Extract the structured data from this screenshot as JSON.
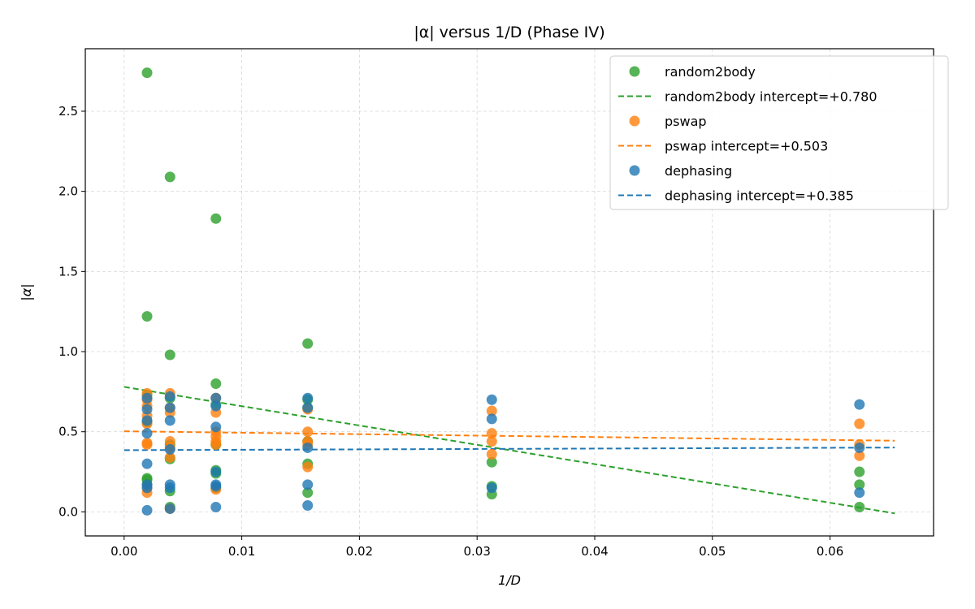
{
  "chart_data": {
    "type": "scatter",
    "title": "|α| versus 1/D (Phase IV)",
    "xlabel": "1/D",
    "ylabel": "|α|",
    "xlim": [
      -0.0033,
      0.0688
    ],
    "ylim": [
      -0.15,
      2.89
    ],
    "xticks": [
      0.0,
      0.01,
      0.02,
      0.03,
      0.04,
      0.05,
      0.06
    ],
    "xtick_labels": [
      "0.00",
      "0.01",
      "0.02",
      "0.03",
      "0.04",
      "0.05",
      "0.06"
    ],
    "yticks": [
      0.0,
      0.5,
      1.0,
      1.5,
      2.0,
      2.5
    ],
    "ytick_labels": [
      "0.0",
      "0.5",
      "1.0",
      "1.5",
      "2.0",
      "2.5"
    ],
    "grid": true,
    "legend_position": "top-right",
    "series": [
      {
        "name": "random2body",
        "fit_label": "random2body intercept=+0.780",
        "color": "#2ca02c",
        "fit": {
          "intercept": 0.78,
          "slope": -12.05,
          "x_range": [
            0.0,
            0.0655
          ]
        },
        "points": [
          [
            0.00195,
            2.74
          ],
          [
            0.00195,
            1.22
          ],
          [
            0.00195,
            0.73
          ],
          [
            0.00195,
            0.56
          ],
          [
            0.00195,
            0.21
          ],
          [
            0.00195,
            0.2
          ],
          [
            0.00195,
            0.17
          ],
          [
            0.0039,
            2.09
          ],
          [
            0.0039,
            0.98
          ],
          [
            0.0039,
            0.71
          ],
          [
            0.0039,
            0.42
          ],
          [
            0.0039,
            0.33
          ],
          [
            0.0039,
            0.13
          ],
          [
            0.0039,
            0.03
          ],
          [
            0.0078,
            1.83
          ],
          [
            0.0078,
            0.8
          ],
          [
            0.0078,
            0.67
          ],
          [
            0.0078,
            0.42
          ],
          [
            0.0078,
            0.26
          ],
          [
            0.0078,
            0.24
          ],
          [
            0.0078,
            0.15
          ],
          [
            0.0156,
            1.05
          ],
          [
            0.0156,
            0.7
          ],
          [
            0.0156,
            0.65
          ],
          [
            0.0156,
            0.44
          ],
          [
            0.0156,
            0.3
          ],
          [
            0.0156,
            0.12
          ],
          [
            0.03125,
            0.31
          ],
          [
            0.03125,
            0.16
          ],
          [
            0.03125,
            0.11
          ],
          [
            0.0625,
            0.25
          ],
          [
            0.0625,
            0.17
          ],
          [
            0.0625,
            0.03
          ]
        ]
      },
      {
        "name": "pswap",
        "fit_label": "pswap intercept=+0.503",
        "color": "#ff7f0e",
        "fit": {
          "intercept": 0.503,
          "slope": -0.9,
          "x_range": [
            0.0,
            0.0655
          ]
        },
        "points": [
          [
            0.00195,
            0.74
          ],
          [
            0.00195,
            0.7
          ],
          [
            0.00195,
            0.66
          ],
          [
            0.00195,
            0.6
          ],
          [
            0.00195,
            0.55
          ],
          [
            0.00195,
            0.43
          ],
          [
            0.00195,
            0.42
          ],
          [
            0.00195,
            0.15
          ],
          [
            0.00195,
            0.12
          ],
          [
            0.0039,
            0.74
          ],
          [
            0.0039,
            0.65
          ],
          [
            0.0039,
            0.62
          ],
          [
            0.0039,
            0.44
          ],
          [
            0.0039,
            0.4
          ],
          [
            0.0039,
            0.34
          ],
          [
            0.0039,
            0.02
          ],
          [
            0.0078,
            0.71
          ],
          [
            0.0078,
            0.62
          ],
          [
            0.0078,
            0.5
          ],
          [
            0.0078,
            0.47
          ],
          [
            0.0078,
            0.44
          ],
          [
            0.0078,
            0.42
          ],
          [
            0.0078,
            0.14
          ],
          [
            0.0156,
            0.64
          ],
          [
            0.0156,
            0.5
          ],
          [
            0.0156,
            0.44
          ],
          [
            0.0156,
            0.42
          ],
          [
            0.0156,
            0.28
          ],
          [
            0.03125,
            0.63
          ],
          [
            0.03125,
            0.49
          ],
          [
            0.03125,
            0.44
          ],
          [
            0.03125,
            0.36
          ],
          [
            0.0625,
            0.55
          ],
          [
            0.0625,
            0.42
          ],
          [
            0.0625,
            0.35
          ]
        ]
      },
      {
        "name": "dephasing",
        "fit_label": "dephasing intercept=+0.385",
        "color": "#1f77b4",
        "fit": {
          "intercept": 0.385,
          "slope": 0.25,
          "x_range": [
            0.0,
            0.0655
          ]
        },
        "points": [
          [
            0.00195,
            0.71
          ],
          [
            0.00195,
            0.64
          ],
          [
            0.00195,
            0.57
          ],
          [
            0.00195,
            0.49
          ],
          [
            0.00195,
            0.3
          ],
          [
            0.00195,
            0.17
          ],
          [
            0.00195,
            0.15
          ],
          [
            0.00195,
            0.01
          ],
          [
            0.0039,
            0.72
          ],
          [
            0.0039,
            0.65
          ],
          [
            0.0039,
            0.57
          ],
          [
            0.0039,
            0.39
          ],
          [
            0.0039,
            0.17
          ],
          [
            0.0039,
            0.15
          ],
          [
            0.0039,
            0.02
          ],
          [
            0.0078,
            0.71
          ],
          [
            0.0078,
            0.66
          ],
          [
            0.0078,
            0.53
          ],
          [
            0.0078,
            0.25
          ],
          [
            0.0078,
            0.17
          ],
          [
            0.0078,
            0.16
          ],
          [
            0.0078,
            0.03
          ],
          [
            0.0156,
            0.71
          ],
          [
            0.0156,
            0.65
          ],
          [
            0.0156,
            0.4
          ],
          [
            0.0156,
            0.17
          ],
          [
            0.0156,
            0.04
          ],
          [
            0.03125,
            0.7
          ],
          [
            0.03125,
            0.58
          ],
          [
            0.03125,
            0.15
          ],
          [
            0.0625,
            0.67
          ],
          [
            0.0625,
            0.4
          ],
          [
            0.0625,
            0.12
          ]
        ]
      }
    ],
    "legend_order": [
      {
        "series": 0,
        "kind": "points"
      },
      {
        "series": 0,
        "kind": "fit"
      },
      {
        "series": 1,
        "kind": "points"
      },
      {
        "series": 1,
        "kind": "fit"
      },
      {
        "series": 2,
        "kind": "points"
      },
      {
        "series": 2,
        "kind": "fit"
      }
    ]
  }
}
